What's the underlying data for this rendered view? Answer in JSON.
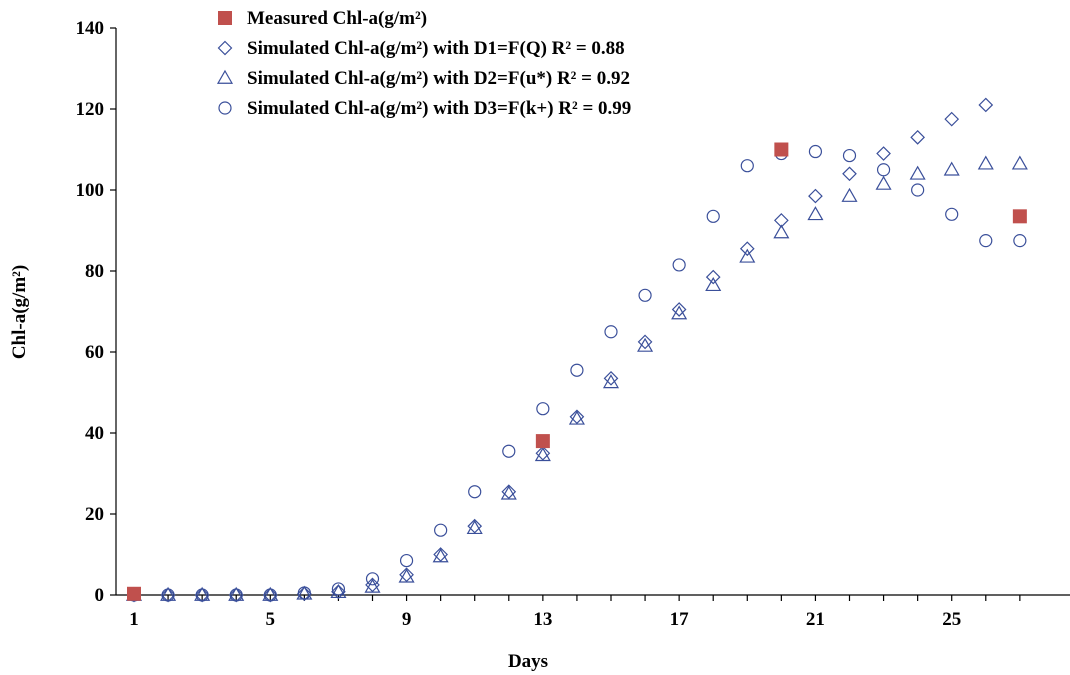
{
  "chart_data": {
    "type": "scatter",
    "xlabel": "Days",
    "ylabel": "Chl-a(g/m²)",
    "xlim": [
      1,
      27
    ],
    "ylim": [
      0,
      140
    ],
    "xticks": [
      1,
      5,
      9,
      13,
      17,
      21,
      25
    ],
    "yticks": [
      0,
      20,
      40,
      60,
      80,
      100,
      120,
      140
    ],
    "grid": false,
    "legend_position": "top-left",
    "series": [
      {
        "name": "Measured Chl-a(g/m²)",
        "marker": "filled-square",
        "color": "#c0504d",
        "x": [
          1,
          13,
          20,
          27
        ],
        "y": [
          0.3,
          38,
          110,
          93.5
        ]
      },
      {
        "name": "Simulated  Chl-a(g/m²) with D1=F(Q) R² = 0.88",
        "marker": "diamond",
        "color": "#3a4f9a",
        "x": [
          1,
          2,
          3,
          4,
          5,
          6,
          7,
          8,
          9,
          10,
          11,
          12,
          13,
          14,
          15,
          16,
          17,
          18,
          19,
          20,
          21,
          22,
          23,
          24,
          25,
          26
        ],
        "y": [
          0,
          0,
          0,
          0,
          0,
          0.3,
          0.8,
          2.5,
          5,
          10,
          17,
          25.5,
          35,
          44,
          53.5,
          62.5,
          70.5,
          78.5,
          85.5,
          92.5,
          98.5,
          104,
          109,
          113,
          117.5,
          121
        ]
      },
      {
        "name": "Simulated Chl-a(g/m²) with D2=F(u*) R² = 0.92",
        "marker": "triangle",
        "color": "#3a4f9a",
        "x": [
          1,
          2,
          3,
          4,
          5,
          6,
          7,
          8,
          9,
          10,
          11,
          12,
          13,
          14,
          15,
          16,
          17,
          18,
          19,
          20,
          21,
          22,
          23,
          24,
          25,
          26,
          27
        ],
        "y": [
          0,
          0,
          0,
          0,
          0,
          0.3,
          0.7,
          2,
          4.5,
          9.5,
          16.5,
          25,
          34.5,
          43.5,
          52.5,
          61.5,
          69.5,
          76.5,
          83.5,
          89.5,
          94,
          98.5,
          101.5,
          104,
          105,
          106.5,
          106.5
        ]
      },
      {
        "name": "Simulated Chl-a(g/m²) with D3=F(k+) R² = 0.99",
        "marker": "circle",
        "color": "#3a4f9a",
        "x": [
          1,
          2,
          3,
          4,
          5,
          6,
          7,
          8,
          9,
          10,
          11,
          12,
          13,
          14,
          15,
          16,
          17,
          18,
          19,
          20,
          21,
          22,
          23,
          24,
          25,
          26,
          27
        ],
        "y": [
          0,
          0,
          0,
          0,
          0,
          0.5,
          1.5,
          4,
          8.5,
          16,
          25.5,
          35.5,
          46,
          55.5,
          65,
          74,
          81.5,
          93.5,
          106,
          109,
          109.5,
          108.5,
          105,
          100,
          94,
          87.5,
          87.5
        ]
      }
    ]
  }
}
